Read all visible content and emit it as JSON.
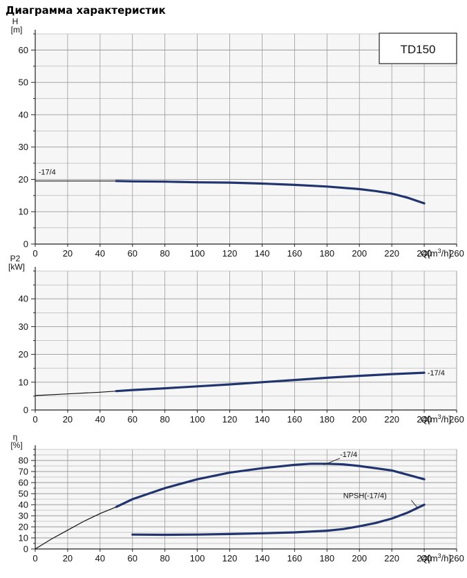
{
  "title": "Диаграмма характеристик",
  "model": "TD150",
  "x_unit_prefix": "Q[m",
  "x_unit_sup": "3",
  "x_unit_suffix": "/h]",
  "colors": {
    "curve": "#22346e",
    "extension": "#111111",
    "grid": "#9a9a9a",
    "panel_bg": "#f6f6f6"
  },
  "chart_data": [
    {
      "type": "line",
      "id": "head",
      "ylabel_top": "H",
      "ylabel_unit": "[m]",
      "xlim": [
        0,
        260
      ],
      "ylim": [
        0,
        65
      ],
      "xticks": [
        0,
        20,
        40,
        60,
        80,
        100,
        120,
        140,
        160,
        180,
        200,
        220,
        240,
        260
      ],
      "yticks": [
        0,
        10,
        20,
        30,
        40,
        50,
        60
      ],
      "grid": true,
      "series": [
        {
          "name": "-17/4",
          "x": [
            0,
            20,
            40,
            50
          ],
          "y": [
            19.5,
            19.5,
            19.5,
            19.5
          ],
          "style": "extension"
        },
        {
          "name": "-17/4",
          "x": [
            50,
            60,
            80,
            100,
            120,
            140,
            160,
            180,
            200,
            210,
            220,
            230,
            240
          ],
          "y": [
            19.5,
            19.4,
            19.3,
            19.1,
            19.0,
            18.7,
            18.3,
            17.8,
            17.0,
            16.4,
            15.6,
            14.3,
            12.6
          ],
          "style": "main"
        }
      ],
      "labels": [
        {
          "text": "-17/4",
          "x": 2,
          "y": 21.5
        }
      ]
    },
    {
      "type": "line",
      "id": "power",
      "ylabel_top": "P2",
      "ylabel_unit": "[kW]",
      "xlim": [
        0,
        260
      ],
      "ylim": [
        0,
        50
      ],
      "xticks": [
        0,
        20,
        40,
        60,
        80,
        100,
        120,
        140,
        160,
        180,
        200,
        220,
        240,
        260
      ],
      "yticks": [
        0,
        10,
        20,
        30,
        40
      ],
      "grid": true,
      "series": [
        {
          "name": "-17/4",
          "x": [
            0,
            20,
            40,
            50
          ],
          "y": [
            5.2,
            5.8,
            6.4,
            6.8
          ],
          "style": "extension"
        },
        {
          "name": "-17/4",
          "x": [
            50,
            60,
            80,
            100,
            120,
            140,
            160,
            180,
            200,
            220,
            240
          ],
          "y": [
            6.8,
            7.2,
            7.8,
            8.5,
            9.2,
            10.0,
            10.8,
            11.6,
            12.3,
            12.9,
            13.4
          ],
          "style": "main"
        }
      ],
      "labels": [
        {
          "text": "-17/4",
          "x": 242,
          "y": 12.5
        }
      ]
    },
    {
      "type": "line",
      "id": "efficiency",
      "ylabel_top": "η",
      "ylabel_unit": "[%]",
      "xlim": [
        0,
        260
      ],
      "ylim": [
        0,
        90
      ],
      "xticks": [
        0,
        20,
        40,
        60,
        80,
        100,
        120,
        140,
        160,
        180,
        200,
        220,
        240,
        260
      ],
      "yticks": [
        0,
        10,
        20,
        30,
        40,
        50,
        60,
        70,
        80
      ],
      "grid": true,
      "series": [
        {
          "name": "-17/4",
          "x": [
            0,
            10,
            20,
            30,
            40,
            50
          ],
          "y": [
            0,
            9,
            17,
            25,
            32,
            38
          ],
          "style": "extension"
        },
        {
          "name": "-17/4",
          "x": [
            50,
            60,
            80,
            100,
            120,
            140,
            160,
            170,
            180,
            190,
            200,
            220,
            240
          ],
          "y": [
            38,
            45,
            55,
            63,
            69,
            73,
            76,
            77,
            77,
            76.5,
            75,
            71,
            63
          ],
          "style": "main"
        },
        {
          "name": "NPSH(-17/4)",
          "x": [
            60,
            80,
            100,
            120,
            140,
            160,
            180,
            190,
            200,
            210,
            220,
            230,
            240
          ],
          "y": [
            13,
            12.8,
            13,
            13.5,
            14.2,
            15,
            16.5,
            18,
            20.5,
            23.5,
            27.5,
            33,
            40
          ],
          "style": "main"
        }
      ],
      "labels": [
        {
          "text": "-17/4",
          "x": 188,
          "y": 83
        },
        {
          "text": "NPSH(-17/4)",
          "x": 190,
          "y": 46
        }
      ],
      "leaders": [
        {
          "from": [
            188,
            82
          ],
          "to": [
            178,
            76
          ]
        },
        {
          "from": [
            232,
            44
          ],
          "to": [
            236,
            37
          ]
        }
      ]
    }
  ]
}
